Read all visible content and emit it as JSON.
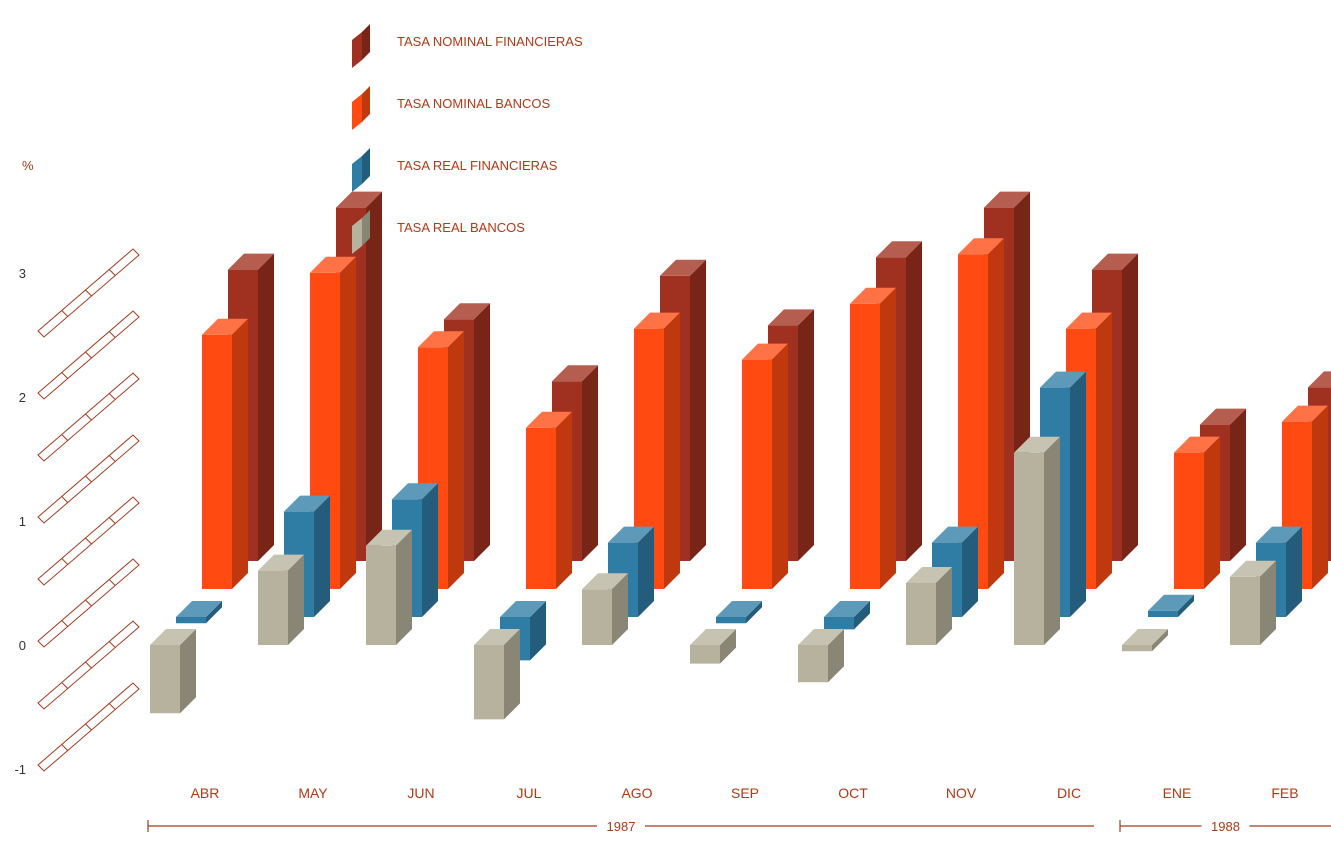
{
  "colors": {
    "nominal_financieras": "#a0301f",
    "nominal_bancos": "#ff4a12",
    "real_financieras": "#2f7ca4",
    "real_bancos": "#b7b29d",
    "text": "#b03a16",
    "axis": "#a33a1e"
  },
  "chart_data": {
    "type": "bar",
    "title": "",
    "ylabel": "%",
    "xlabel": "",
    "ylim": [
      -1,
      3
    ],
    "yticks": [
      "-1",
      "0",
      "1",
      "2",
      "3"
    ],
    "categories": [
      "ABR",
      "MAY",
      "JUN",
      "JUL",
      "AGO",
      "SEP",
      "OCT",
      "NOV",
      "DIC",
      "ENE",
      "FEB"
    ],
    "groups": [
      {
        "label": "1987",
        "from": "ABR",
        "to": "DIC"
      },
      {
        "label": "1988",
        "from": "ENE",
        "to": "FEB"
      }
    ],
    "series": [
      {
        "name": "TASA REAL BANCOS",
        "values": [
          -0.55,
          0.6,
          0.8,
          -0.6,
          0.45,
          -0.15,
          -0.3,
          0.5,
          1.55,
          -0.05,
          0.55
        ]
      },
      {
        "name": "TASA REAL FINANCIERAS",
        "values": [
          -0.05,
          0.85,
          0.95,
          -0.35,
          0.6,
          -0.05,
          -0.1,
          0.6,
          1.85,
          0.05,
          0.6
        ]
      },
      {
        "name": "TASA NOMINAL BANCOS",
        "values": [
          2.05,
          2.55,
          1.95,
          1.3,
          2.1,
          1.85,
          2.3,
          2.7,
          2.1,
          1.1,
          1.35
        ]
      },
      {
        "name": "TASA NOMINAL FINANCIERAS",
        "values": [
          2.35,
          2.85,
          1.95,
          1.45,
          2.3,
          1.9,
          2.45,
          2.85,
          2.35,
          1.1,
          1.4
        ]
      }
    ],
    "legend": [
      "TASA NOMINAL FINANCIERAS",
      "TASA NOMINAL BANCOS",
      "TASA REAL FINANCIERAS",
      "TASA REAL BANCOS"
    ],
    "legend_position": "top-center",
    "grid": false
  }
}
